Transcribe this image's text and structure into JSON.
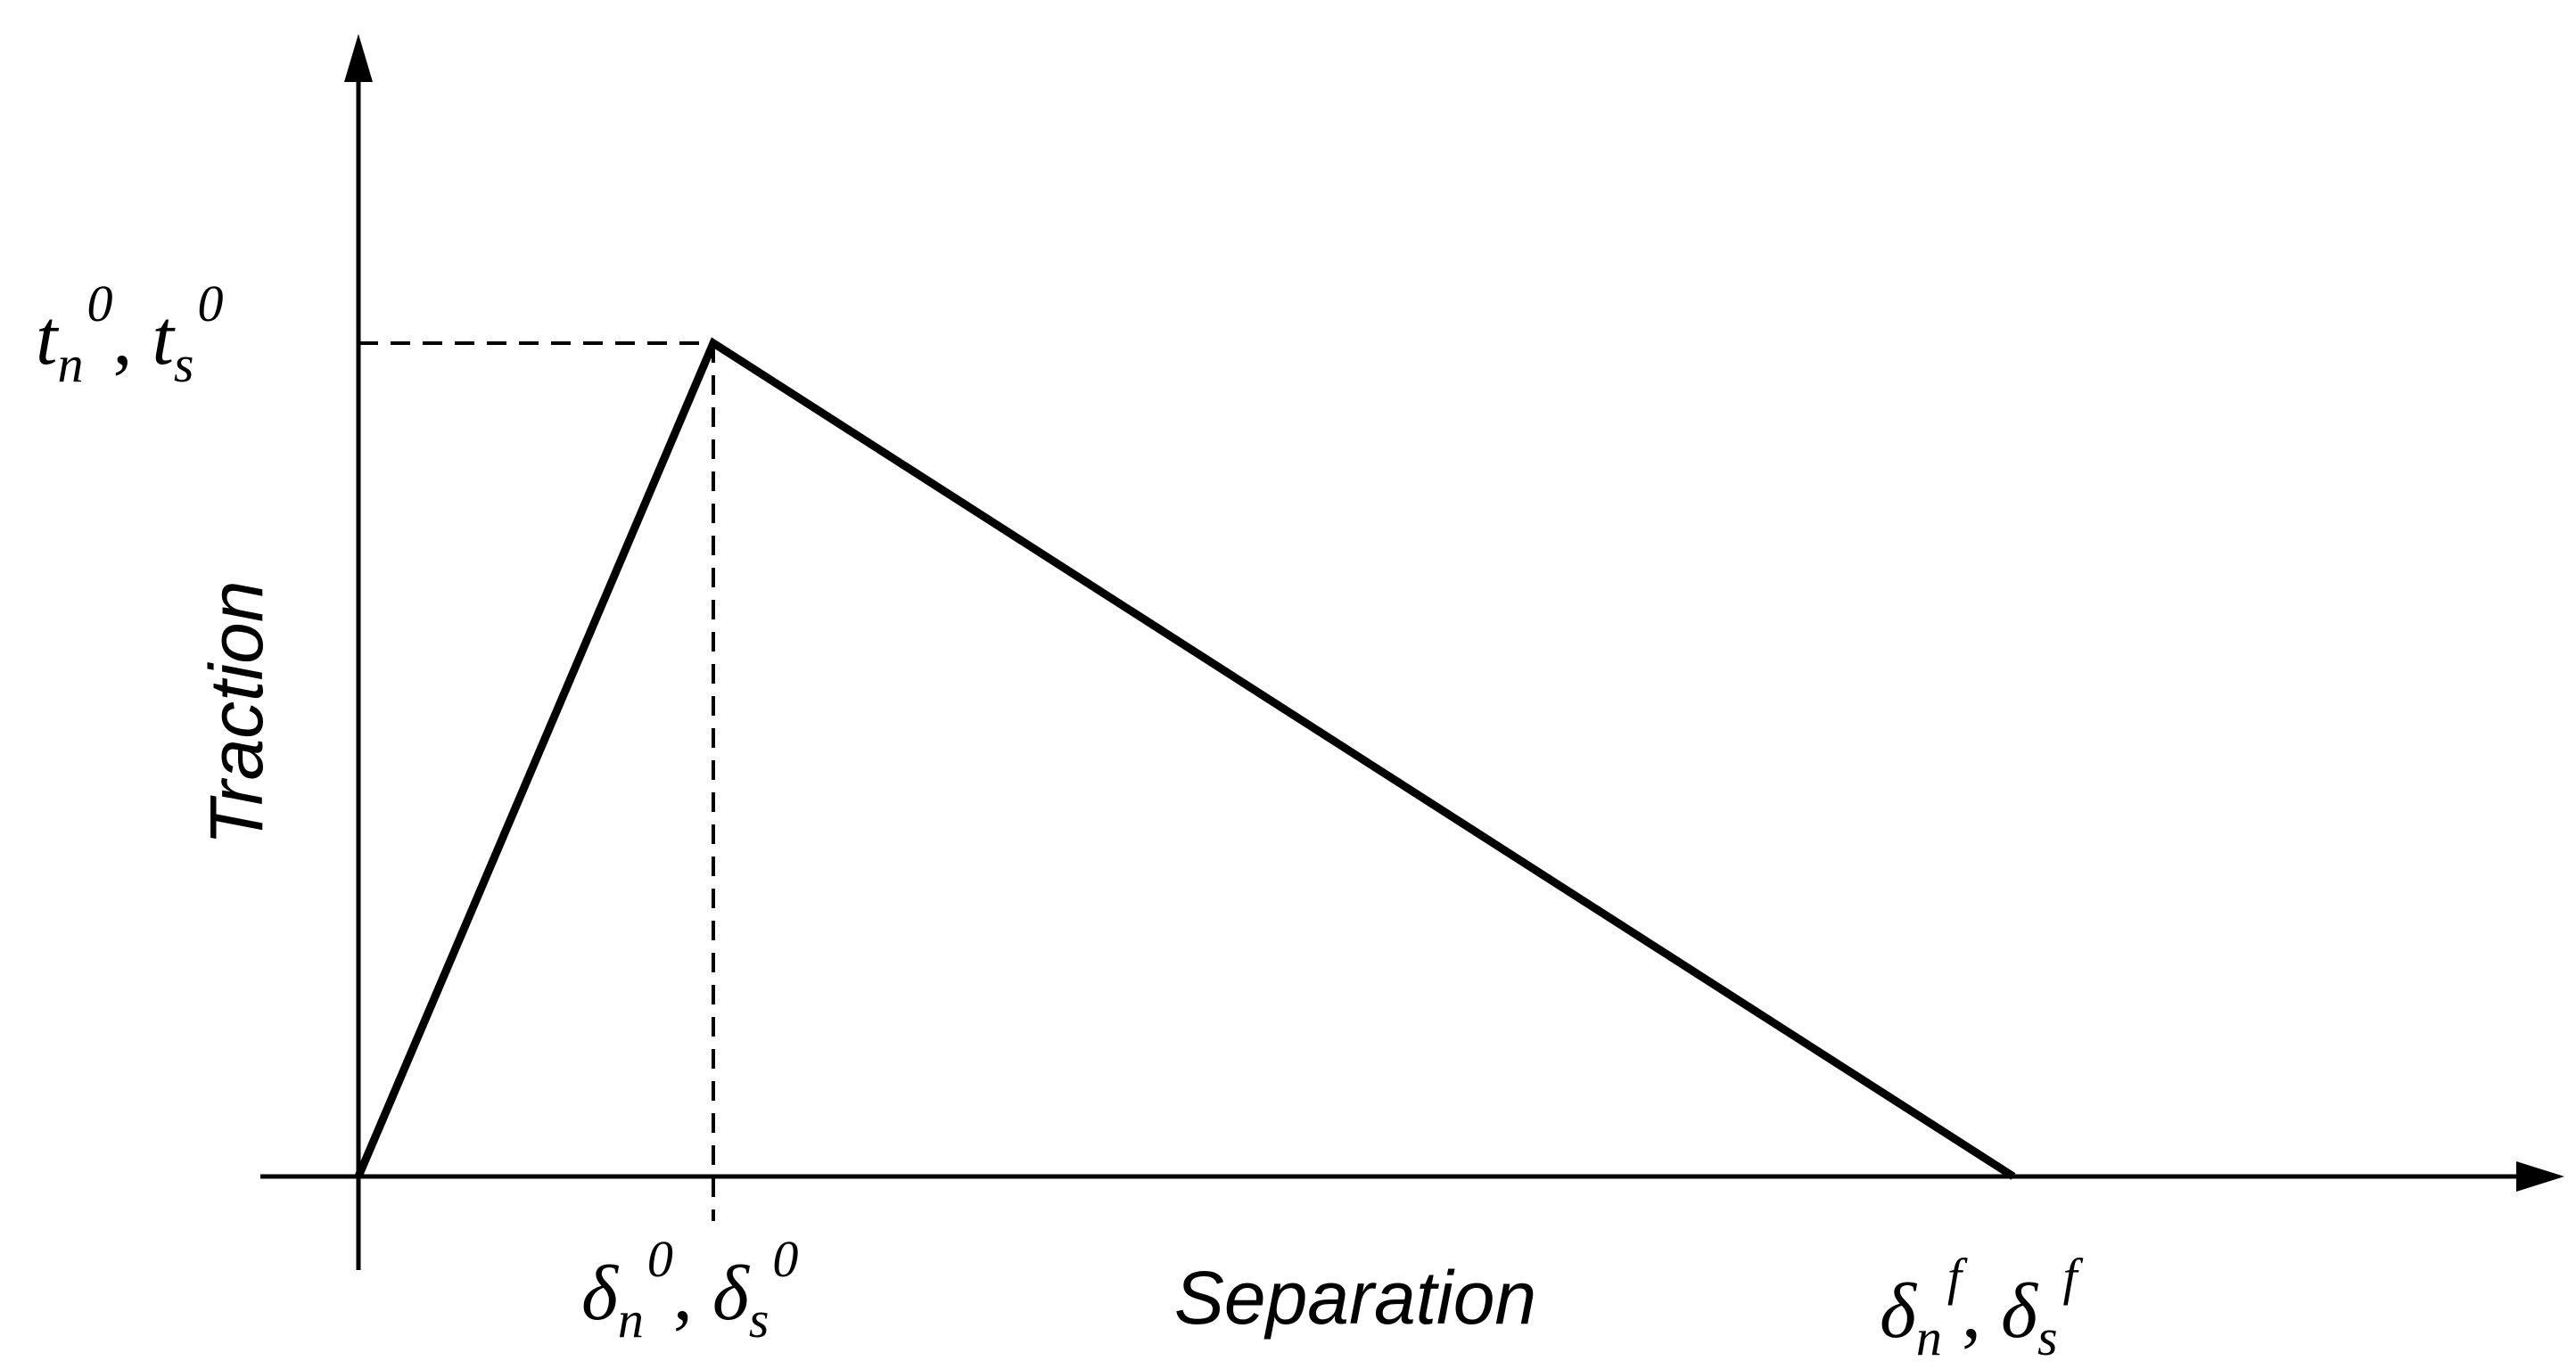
{
  "diagram": {
    "x_axis_label": "Separation",
    "y_axis_label": "Traction",
    "peak_label": {
      "first": {
        "base": "t",
        "sub": "n",
        "sup": "0"
      },
      "separator": ", ",
      "second": {
        "base": "t",
        "sub": "s",
        "sup": "0"
      }
    },
    "onset_label": {
      "first": {
        "base": "δ",
        "sub": "n",
        "sup": "0"
      },
      "separator": ", ",
      "second": {
        "base": "δ",
        "sub": "s",
        "sup": "0"
      }
    },
    "failure_label": {
      "first": {
        "base": "δ",
        "sub": "n",
        "sup": "f"
      },
      "separator": ", ",
      "second": {
        "base": "δ",
        "sub": "s",
        "sup": "f"
      }
    },
    "colors": {
      "line": "#000000",
      "background": "#ffffff"
    }
  }
}
